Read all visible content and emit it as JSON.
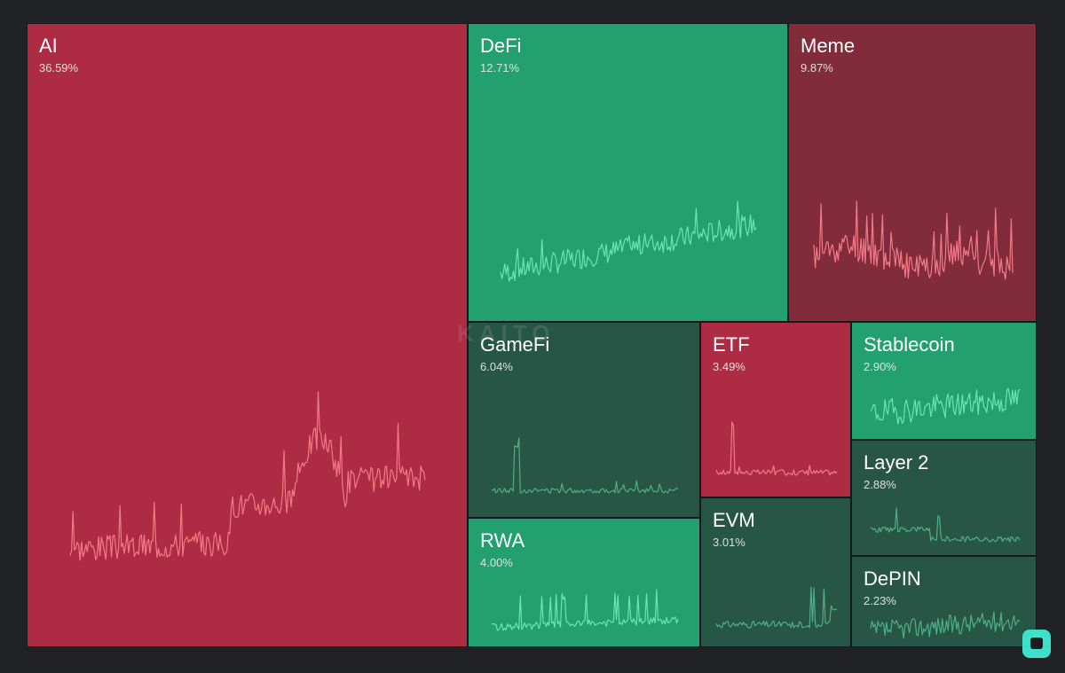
{
  "chart_data": {
    "type": "treemap",
    "title": "",
    "colors": {
      "red_strong": "#ad2c43",
      "red_dark": "#812b3b",
      "green_strong": "#23a070",
      "green_dark": "#275646",
      "line_red": "#f27a88",
      "line_green": "#65e6b4",
      "line_green_dim": "#4fae87"
    },
    "watermark": "KAITO",
    "series": [
      {
        "name": "AI",
        "value_pct": 36.59,
        "label": "36.59%",
        "color": "#ad2c43",
        "line": "#f27a88",
        "trend": "down",
        "spark_seed": 3,
        "spark_profile": "ai"
      },
      {
        "name": "DeFi",
        "value_pct": 12.71,
        "label": "12.71%",
        "color": "#23a070",
        "line": "#65e6b4",
        "trend": "up",
        "spark_seed": 7,
        "spark_profile": "rising"
      },
      {
        "name": "Meme",
        "value_pct": 9.87,
        "label": "9.87%",
        "color": "#812b3b",
        "line": "#f27a88",
        "trend": "down",
        "spark_seed": 11,
        "spark_profile": "spiky"
      },
      {
        "name": "GameFi",
        "value_pct": 6.04,
        "label": "6.04%",
        "color": "#275646",
        "line": "#4fae87",
        "trend": "flat",
        "spark_seed": 13,
        "spark_profile": "earlyspike"
      },
      {
        "name": "ETF",
        "value_pct": 3.49,
        "label": "3.49%",
        "color": "#ad2c43",
        "line": "#f27a88",
        "trend": "down",
        "spark_seed": 17,
        "spark_profile": "earlyspike"
      },
      {
        "name": "Stablecoin",
        "value_pct": 2.9,
        "label": "2.90%",
        "color": "#23a070",
        "line": "#65e6b4",
        "trend": "up",
        "spark_seed": 19,
        "spark_profile": "noisy"
      },
      {
        "name": "Layer 2",
        "value_pct": 2.88,
        "label": "2.88%",
        "color": "#275646",
        "line": "#4fae87",
        "trend": "flat",
        "spark_seed": 23,
        "spark_profile": "decay"
      },
      {
        "name": "RWA",
        "value_pct": 4.0,
        "label": "4.00%",
        "color": "#23a070",
        "line": "#65e6b4",
        "trend": "up",
        "spark_seed": 29,
        "spark_profile": "spikes"
      },
      {
        "name": "EVM",
        "value_pct": 3.01,
        "label": "3.01%",
        "color": "#275646",
        "line": "#4fae87",
        "trend": "flat",
        "spark_seed": 31,
        "spark_profile": "latespike"
      },
      {
        "name": "DePIN",
        "value_pct": 2.23,
        "label": "2.23%",
        "color": "#275646",
        "line": "#4fae87",
        "trend": "flat",
        "spark_seed": 37,
        "spark_profile": "noisy"
      }
    ]
  }
}
